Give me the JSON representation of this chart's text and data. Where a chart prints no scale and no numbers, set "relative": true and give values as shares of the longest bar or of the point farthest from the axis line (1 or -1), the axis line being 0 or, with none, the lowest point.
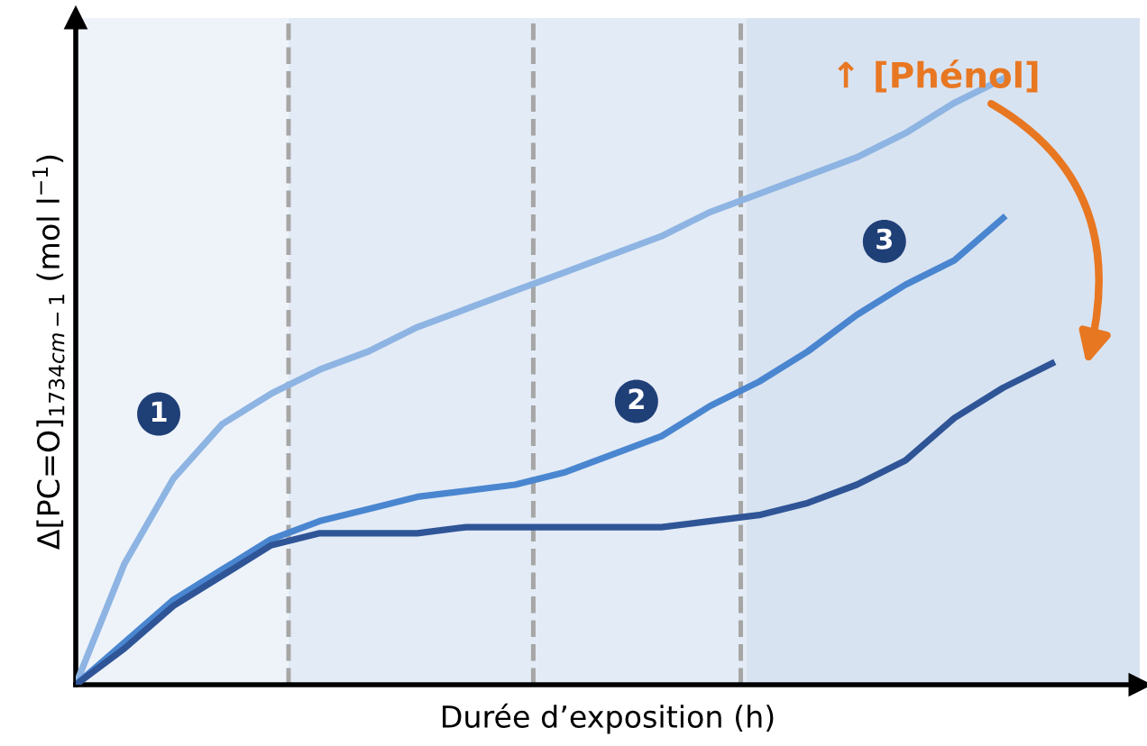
{
  "chart_data": {
    "type": "line",
    "relative": true,
    "xlabel": "Durée d’exposition (h)",
    "ylabel": "Δ[PC=O]$_{1734cm−1}$ (mol l$^{−1}$)",
    "categories": [
      null,
      null,
      null,
      null,
      null,
      null,
      null,
      null,
      null,
      null,
      null,
      null,
      null,
      null,
      null,
      null,
      null,
      null,
      null,
      null,
      null
    ],
    "marker": "none",
    "line_style": "solid",
    "series": [
      {
        "color": "#8db4e2",
        "values": [
          0,
          0.2,
          0.34,
          0.43,
          0.48,
          0.52,
          0.55,
          0.59,
          0.62,
          0.65,
          0.68,
          0.71,
          0.74,
          0.78,
          0.81,
          0.84,
          0.87,
          0.91,
          0.96,
          1,
          null
        ]
      },
      {
        "color": "#4a86d0",
        "values": [
          0,
          0.07,
          0.14,
          0.19,
          0.24,
          0.27,
          0.29,
          0.31,
          0.32,
          0.33,
          0.35,
          0.38,
          0.41,
          0.46,
          0.5,
          0.55,
          0.61,
          0.66,
          0.7,
          0.77,
          null
        ]
      },
      {
        "color": "#2f5597",
        "values": [
          0,
          0.06,
          0.13,
          0.18,
          0.23,
          0.25,
          0.25,
          0.25,
          0.26,
          0.26,
          0.26,
          0.26,
          0.26,
          0.27,
          0.28,
          0.3,
          0.33,
          0.37,
          0.44,
          0.49,
          0.53
        ]
      }
    ],
    "annotations": [
      "1",
      "2",
      "3",
      "↑ [Phénol]"
    ]
  }
}
